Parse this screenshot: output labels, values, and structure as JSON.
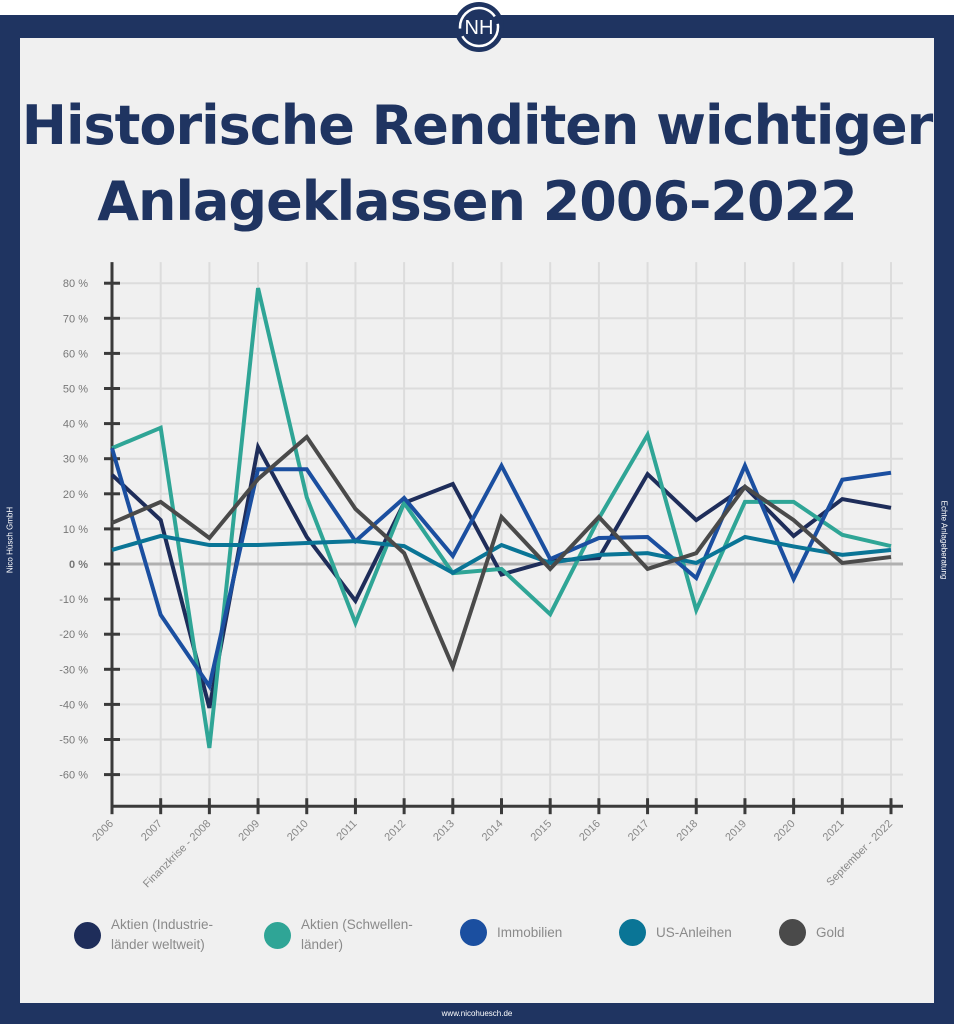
{
  "header": {
    "logo_text": "NH",
    "title_line1": "Historische Renditen wichtiger",
    "title_line2": "Anlageklassen 2006-2022"
  },
  "side_left": "Nico Hüsch GmbH",
  "side_right": "Echte Anlageberatung",
  "footer_url": "www.nicohuesch.de",
  "colors": {
    "frame": "#1f3461",
    "background": "#f0f0f0",
    "zero_line": "#b0b0b0",
    "axis": "#3a3a3a"
  },
  "chart_data": {
    "type": "line",
    "title": "Historische Renditen wichtiger Anlageklassen 2006-2022",
    "xlabel": "",
    "ylabel": "",
    "categories": [
      "2006",
      "2007",
      "Finanzkrise - 2008",
      "2009",
      "2010",
      "2011",
      "2012",
      "2013",
      "2014",
      "2015",
      "2016",
      "2017",
      "2018",
      "2019",
      "2020",
      "2021",
      "September - 2022"
    ],
    "yticks": [
      80,
      70,
      60,
      50,
      40,
      30,
      20,
      10,
      0,
      -10,
      -20,
      -30,
      -40,
      -50,
      -60
    ],
    "ytick_labels": [
      "80 %",
      "70 %",
      "60 %",
      "50 %",
      "40 %",
      "30 %",
      "20 %",
      "10 %",
      "0 %",
      "-10 %",
      "-20 %",
      "-30 %",
      "-40 %",
      "-50 %",
      "-60 %"
    ],
    "ylim": [
      -69,
      86
    ],
    "grid": true,
    "legend_position": "bottom",
    "series": [
      {
        "name": "Aktien (Industrie-länder weltweit)",
        "label_line1": "Aktien (Industrie-",
        "label_line2": "länder weltweit)",
        "color": "#1e2d5a",
        "values": [
          25.4,
          12.5,
          -41,
          33.3,
          7.7,
          -10.5,
          17.4,
          22.8,
          -3,
          0.9,
          1.7,
          25.6,
          12.5,
          22,
          8,
          18.5,
          16
        ]
      },
      {
        "name": "Aktien (Schwellen-länder)",
        "label_line1": "Aktien (Schwellen-",
        "label_line2": "länder)",
        "color": "#2fa596",
        "values": [
          33,
          38.8,
          -52.4,
          78.6,
          19,
          -16.8,
          17.4,
          -2.6,
          -1.4,
          -14.3,
          13,
          36.8,
          -13.1,
          17.7,
          17.7,
          8.3,
          5.1
        ]
      },
      {
        "name": "Immobilien",
        "label_line1": "Immobilien",
        "label_line2": "",
        "color": "#1b4fa0",
        "values": [
          33,
          -14.5,
          -34.8,
          27,
          27,
          6.5,
          18.8,
          2.3,
          28,
          1.4,
          7.4,
          7.7,
          -4,
          28,
          -4.3,
          24,
          26
        ]
      },
      {
        "name": "US-Anleihen",
        "label_line1": "US-Anleihen",
        "label_line2": "",
        "color": "#0a7596",
        "values": [
          4,
          8,
          5.4,
          5.4,
          6,
          6.5,
          5.1,
          -2.5,
          5.4,
          0.3,
          2.6,
          3.1,
          0.3,
          7.7,
          5,
          2.6,
          4
        ]
      },
      {
        "name": "Gold",
        "label_line1": "Gold",
        "label_line2": "",
        "color": "#4a4a4a",
        "values": [
          11.7,
          17.7,
          7.4,
          24.2,
          36.2,
          15.7,
          3.1,
          -29.3,
          13.4,
          -1.4,
          13.4,
          -1.4,
          3.1,
          22,
          12.5,
          0.3,
          2
        ]
      }
    ]
  }
}
